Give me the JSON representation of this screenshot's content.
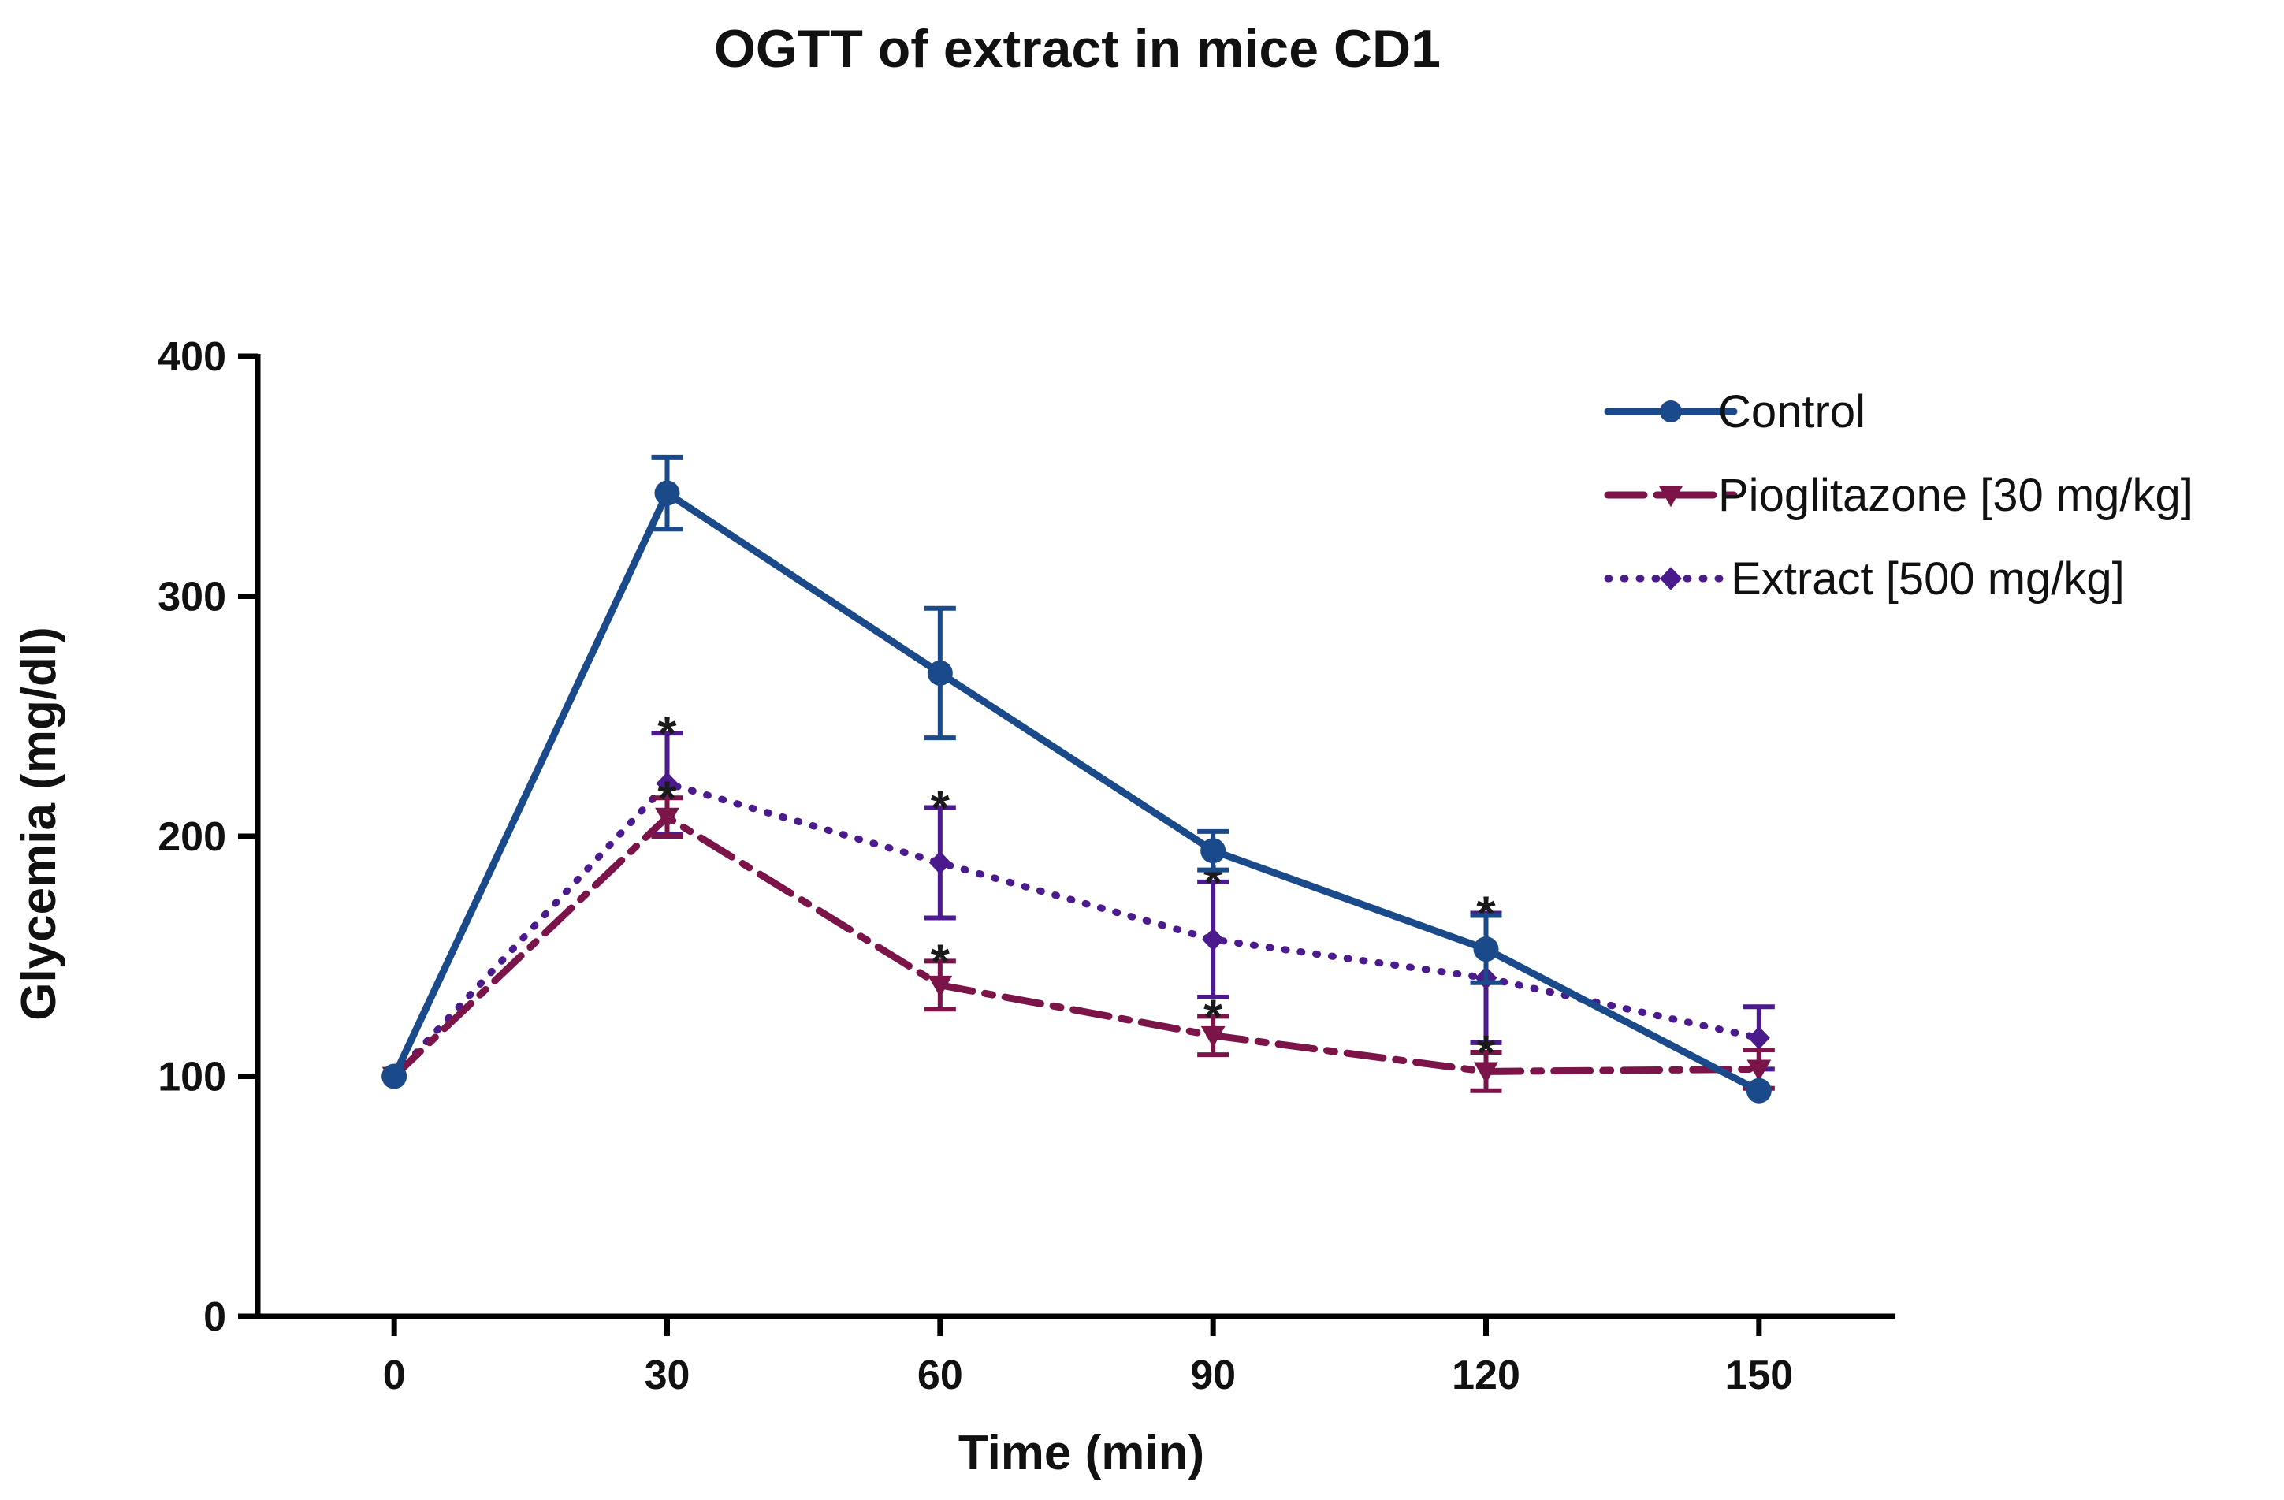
{
  "chart_data": {
    "type": "line",
    "title": "OGTT of extract in mice CD1",
    "xlabel": "Time (min)",
    "ylabel": "Glycemia (mg/dl)",
    "x": [
      0,
      30,
      60,
      90,
      120,
      150
    ],
    "x_tick_labels": [
      "0",
      "30",
      "60",
      "90",
      "120",
      "150"
    ],
    "xlim": [
      -15,
      165
    ],
    "ylim": [
      0,
      400
    ],
    "y_ticks": [
      0,
      100,
      200,
      300,
      400
    ],
    "y_tick_labels": [
      "0",
      "100",
      "200",
      "300",
      "400"
    ],
    "grid": false,
    "legend_position": "top-right",
    "significance_marker": "*",
    "series": [
      {
        "name": "Control",
        "color": "#1B4A8A",
        "marker": "circle",
        "line_style": "solid",
        "values": [
          100,
          343,
          268,
          194,
          153,
          94
        ],
        "error": [
          0,
          15,
          27,
          8,
          14,
          0
        ],
        "significance": [
          false,
          false,
          false,
          false,
          false,
          false
        ]
      },
      {
        "name": "Pioglitazone [30 mg/kg]",
        "color": "#7A1449",
        "marker": "triangle-down",
        "line_style": "dash-dot",
        "values": [
          100,
          208,
          138,
          117,
          102,
          103
        ],
        "error": [
          0,
          8,
          10,
          8,
          8,
          8
        ],
        "significance": [
          false,
          true,
          true,
          true,
          true,
          false
        ]
      },
      {
        "name": " Extract [500 mg/kg]",
        "color": "#4B1A8C",
        "marker": "diamond",
        "line_style": "dotted",
        "values": [
          100,
          222,
          189,
          157,
          141,
          116
        ],
        "error": [
          0,
          21,
          23,
          24,
          27,
          13
        ],
        "significance": [
          false,
          true,
          true,
          true,
          true,
          false
        ]
      }
    ]
  }
}
